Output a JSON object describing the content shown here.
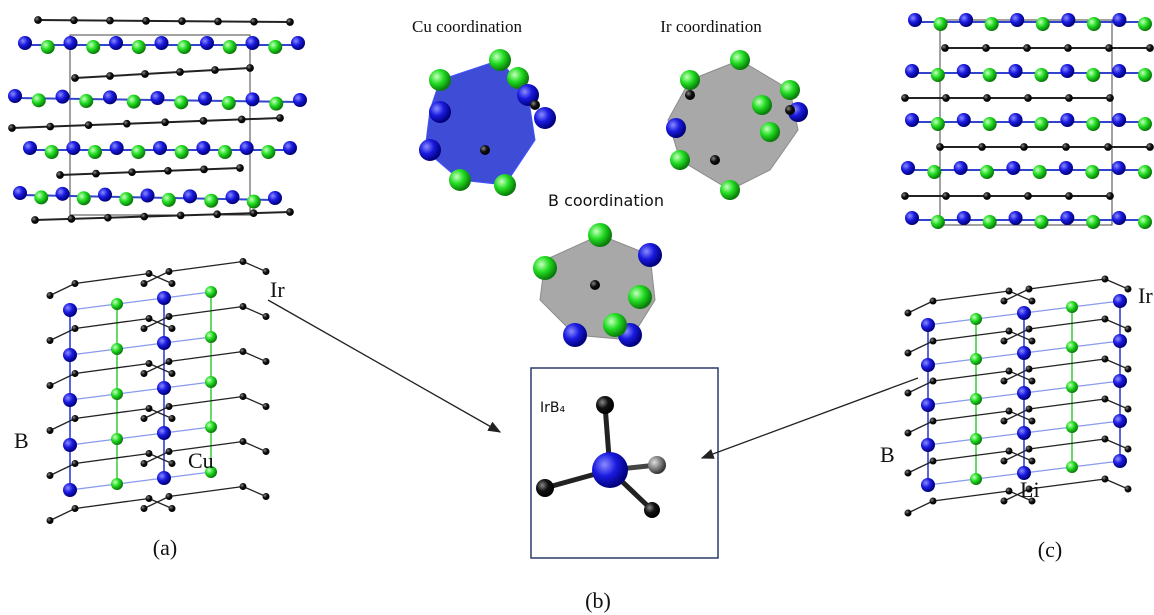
{
  "panel_a": {
    "labels": {
      "ir": "Ir",
      "b": "B",
      "cu": "Cu"
    },
    "caption": "(a)"
  },
  "panel_b": {
    "cu_coordination": "Cu coordination",
    "ir_coordination": "Ir coordination",
    "b_coordination": "B coordination",
    "inset_label": "IrB₄",
    "caption": "(b)"
  },
  "panel_c": {
    "labels": {
      "ir": "Ir",
      "b": "B",
      "li": "Li"
    },
    "caption": "(c)"
  }
}
